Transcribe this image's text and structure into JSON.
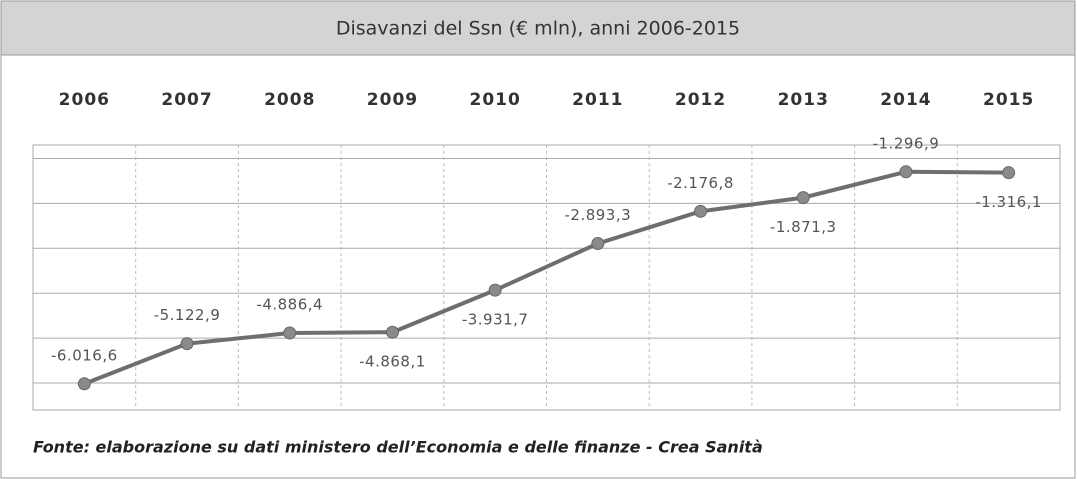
{
  "chart_data": {
    "type": "line",
    "title": "Disavanzi del Ssn (€ mln), anni 2006-2015",
    "source": "Fonte: elaborazione su dati ministero dell’Economia e delle finanze - Crea Sanità",
    "categories": [
      "2006",
      "2007",
      "2008",
      "2009",
      "2010",
      "2011",
      "2012",
      "2013",
      "2014",
      "2015"
    ],
    "values": [
      -6016.6,
      -5122.9,
      -4886.4,
      -4868.1,
      -3931.7,
      -2893.3,
      -2176.8,
      -1871.3,
      -1296.9,
      -1316.1
    ],
    "value_labels": [
      "-6.016,6",
      "-5.122,9",
      "-4.886,4",
      "-4.868,1",
      "-3.931,7",
      "-2.893,3",
      "-2.176,8",
      "-1.871,3",
      "-1.296,9",
      "-1.316,1"
    ],
    "color": "#6e6e6e",
    "ylim": [
      -6600,
      -700
    ],
    "yticks": [
      -6000,
      -5000,
      -4000,
      -3000,
      -2000,
      -1000
    ],
    "grid": true
  }
}
